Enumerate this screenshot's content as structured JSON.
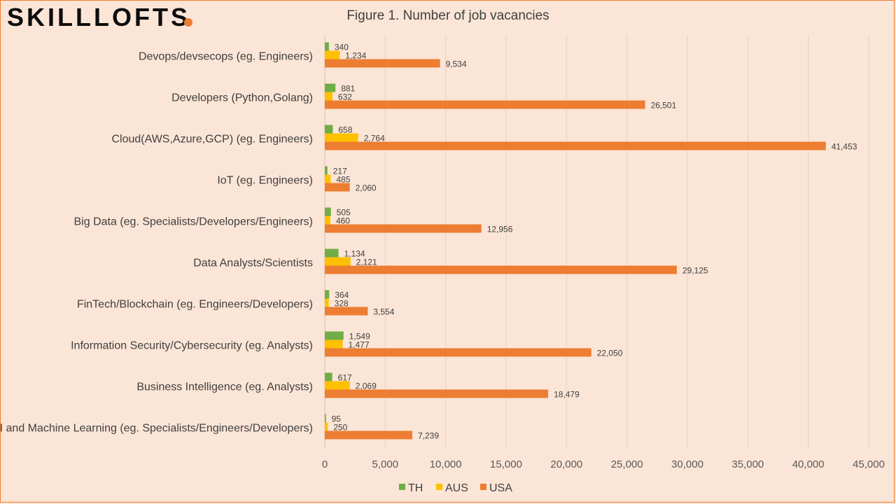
{
  "brand": {
    "name": "SKILLLOFTS"
  },
  "colors": {
    "background": "#fbe5d6",
    "accent": "#ed7d31",
    "grid": "#e6d0c1"
  },
  "chart_data": {
    "type": "bar",
    "orientation": "horizontal",
    "title": "Figure 1. Number of job vacancies",
    "xlabel": "",
    "ylabel": "",
    "xlim": [
      0,
      45000
    ],
    "xticks": [
      0,
      5000,
      10000,
      15000,
      20000,
      25000,
      30000,
      35000,
      40000,
      45000
    ],
    "xtick_labels": [
      "0",
      "5,000",
      "10,000",
      "15,000",
      "20,000",
      "25,000",
      "30,000",
      "35,000",
      "40,000",
      "45,000"
    ],
    "grid": "vertical",
    "legend_position": "bottom",
    "categories": [
      "Devops/devsecops (eg. Engineers)",
      "Developers (Python,Golang)",
      "Cloud(AWS,Azure,GCP) (eg. Engineers)",
      "IoT (eg. Engineers)",
      "Big Data (eg. Specialists/Developers/Engineers)",
      "Data Analysts/Scientists",
      "FinTech/Blockchain (eg. Engineers/Developers)",
      "Information Security/Cybersecurity (eg. Analysts)",
      "Business Intelligence (eg. Analysts)",
      "AI and Machine Learning (eg. Specialists/Engineers/Developers)"
    ],
    "series": [
      {
        "name": "TH",
        "color": "#70ad47",
        "values": [
          340,
          881,
          658,
          217,
          505,
          1134,
          364,
          1549,
          617,
          95
        ],
        "labels": [
          "340",
          "881",
          "658",
          "217",
          "505",
          "1,134",
          "364",
          "1,549",
          "617",
          "95"
        ]
      },
      {
        "name": "AUS",
        "color": "#ffc000",
        "values": [
          1234,
          632,
          2764,
          485,
          460,
          2121,
          328,
          1477,
          2069,
          250
        ],
        "labels": [
          "1,234",
          "632",
          "2,764",
          "485",
          "460",
          "2,121",
          "328",
          "1,477",
          "2,069",
          "250"
        ]
      },
      {
        "name": "USA",
        "color": "#ed7d31",
        "values": [
          9534,
          26501,
          41453,
          2060,
          12956,
          29125,
          3554,
          22050,
          18479,
          7239
        ],
        "labels": [
          "9,534",
          "26,501",
          "41,453",
          "2,060",
          "12,956",
          "29,125",
          "3,554",
          "22,050",
          "18,479",
          "7,239"
        ]
      }
    ]
  }
}
